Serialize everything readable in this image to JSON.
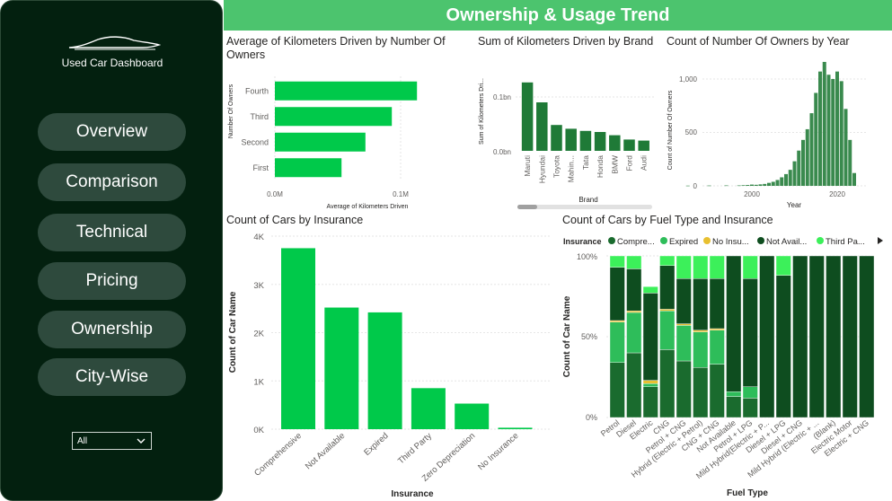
{
  "sidebar": {
    "app_title": "Used Car Dashboard",
    "nav": [
      "Overview",
      "Comparison",
      "Technical",
      "Pricing",
      "Ownership",
      "City-Wise"
    ],
    "slicer_value": "All"
  },
  "header": {
    "title": "Ownership & Usage Trend"
  },
  "colors": {
    "dark_green": "#1f7a37",
    "bright_green": "#00c94a",
    "header_green": "#4cc46e",
    "sidebar_bg": "#03200f"
  },
  "charts": {
    "km_by_owners": {
      "title": "Average of Kilometers Driven by Number Of Owners",
      "xlabel": "Average of Kilometers Driven",
      "ylabel": "Number Of Owners",
      "xticks": [
        "0.0M",
        "0.1M"
      ]
    },
    "km_by_brand": {
      "title": "Sum of Kilometers Driven by Brand",
      "xlabel": "Brand",
      "ylabel": "Sum of Kilometers Dri...",
      "yticks": [
        "0.0bn",
        "0.1bn"
      ]
    },
    "owners_by_year": {
      "title": "Count of Number Of Owners by Year",
      "xlabel": "Year",
      "ylabel": "Count of Number Of Owners",
      "yticks": [
        "0",
        "500",
        "1,000"
      ],
      "xticks": [
        "2000",
        "2020"
      ]
    },
    "cars_by_insurance": {
      "title": "Count of Cars by Insurance",
      "xlabel": "Insurance",
      "ylabel": "Count of Car Name",
      "yticks": [
        "0K",
        "1K",
        "2K",
        "3K",
        "4K"
      ]
    },
    "fuel_insurance": {
      "title": "Count of Cars by Fuel Type and Insurance",
      "xlabel": "Fuel Type",
      "ylabel": "Count of Car Name",
      "legend_title": "Insurance",
      "legend": [
        {
          "label": "Compre...",
          "color": "#1a6b2e"
        },
        {
          "label": "Expired",
          "color": "#2ebd5a"
        },
        {
          "label": "No Insu...",
          "color": "#e8c030"
        },
        {
          "label": "Not Avail...",
          "color": "#0e4d1f"
        },
        {
          "label": "Third Pa...",
          "color": "#3cf05a"
        }
      ],
      "yticks": [
        "0%",
        "50%",
        "100%"
      ]
    }
  },
  "chart_data": [
    {
      "type": "bar",
      "orientation": "horizontal",
      "title": "Average of Kilometers Driven by Number Of Owners",
      "categories": [
        "Fourth",
        "Third",
        "Second",
        "First"
      ],
      "values": [
        113000,
        93000,
        72000,
        53000
      ],
      "xlim": [
        0,
        130000
      ],
      "xlabel": "Average of Kilometers Driven",
      "ylabel": "Number Of Owners"
    },
    {
      "type": "bar",
      "title": "Sum of Kilometers Driven by Brand",
      "categories": [
        "Maruti",
        "Hyundai",
        "Toyota",
        "Mahin...",
        "Tata",
        "Honda",
        "BMW",
        "Ford",
        "Audi"
      ],
      "values": [
        0.127,
        0.09,
        0.048,
        0.041,
        0.037,
        0.035,
        0.029,
        0.021,
        0.019
      ],
      "ylim": [
        0,
        0.15
      ],
      "xlabel": "Brand",
      "ylabel": "Sum of Kilometers Dri..."
    },
    {
      "type": "bar",
      "title": "Count of Number Of Owners by Year",
      "x": [
        1985,
        1990,
        1994,
        1997,
        1998,
        1999,
        2000,
        2001,
        2002,
        2003,
        2004,
        2005,
        2006,
        2007,
        2008,
        2009,
        2010,
        2011,
        2012,
        2013,
        2014,
        2015,
        2016,
        2017,
        2018,
        2019,
        2020,
        2021,
        2022,
        2023,
        2024
      ],
      "values": [
        2,
        3,
        4,
        4,
        6,
        8,
        12,
        10,
        14,
        18,
        28,
        38,
        55,
        80,
        110,
        150,
        230,
        330,
        430,
        530,
        680,
        870,
        1070,
        1160,
        1040,
        1000,
        1070,
        980,
        720,
        430,
        120
      ],
      "ylim": [
        0,
        1150
      ],
      "xlabel": "Year",
      "ylabel": "Count of Number Of Owners"
    },
    {
      "type": "bar",
      "title": "Count of Cars by Insurance",
      "categories": [
        "Comprehensive",
        "Not Available",
        "Expired",
        "Third Party",
        "Zero Depreciation",
        "No Insurance"
      ],
      "values": [
        3750,
        2520,
        2420,
        850,
        530,
        30
      ],
      "ylim": [
        0,
        4000
      ],
      "xlabel": "Insurance",
      "ylabel": "Count of Car Name"
    },
    {
      "type": "bar",
      "stacked": "percent",
      "title": "Count of Cars by Fuel Type and Insurance",
      "categories": [
        "Petrol",
        "Diesel",
        "Electric",
        "CNG",
        "Petrol + CNG",
        "Hybrid (Electric + Petrol)",
        "CNG + CNG",
        "Not Available",
        "Petrol + LPG",
        "Mild Hybrid(Electric + P...",
        "Diesel + LPG",
        "Diesel + CNG",
        "Mild Hybrid (Electric + ...",
        "(Blank)",
        "Electric Motor",
        "Electric + CNG"
      ],
      "series": [
        {
          "name": "Compre...",
          "values": [
            34,
            40,
            19,
            42,
            35,
            31,
            33,
            13,
            12,
            0,
            0,
            0,
            0,
            0,
            0,
            0
          ]
        },
        {
          "name": "Expired",
          "values": [
            25,
            25,
            2,
            24,
            22,
            22,
            21,
            3,
            7,
            0,
            0,
            0,
            0,
            0,
            0,
            0
          ]
        },
        {
          "name": "No Insu...",
          "values": [
            1,
            1,
            2,
            1,
            1,
            1,
            1,
            0,
            0,
            0,
            0,
            0,
            0,
            0,
            0,
            0
          ]
        },
        {
          "name": "Not Avail...",
          "values": [
            33,
            26,
            54,
            27,
            28,
            32,
            31,
            84,
            67,
            100,
            88,
            100,
            100,
            100,
            100,
            100
          ]
        },
        {
          "name": "Third Pa...",
          "values": [
            7,
            8,
            4,
            6,
            14,
            14,
            14,
            0,
            14,
            0,
            12,
            0,
            0,
            0,
            0,
            0
          ]
        }
      ],
      "ylim": [
        0,
        100
      ],
      "xlabel": "Fuel Type",
      "ylabel": "Count of Car Name"
    }
  ]
}
